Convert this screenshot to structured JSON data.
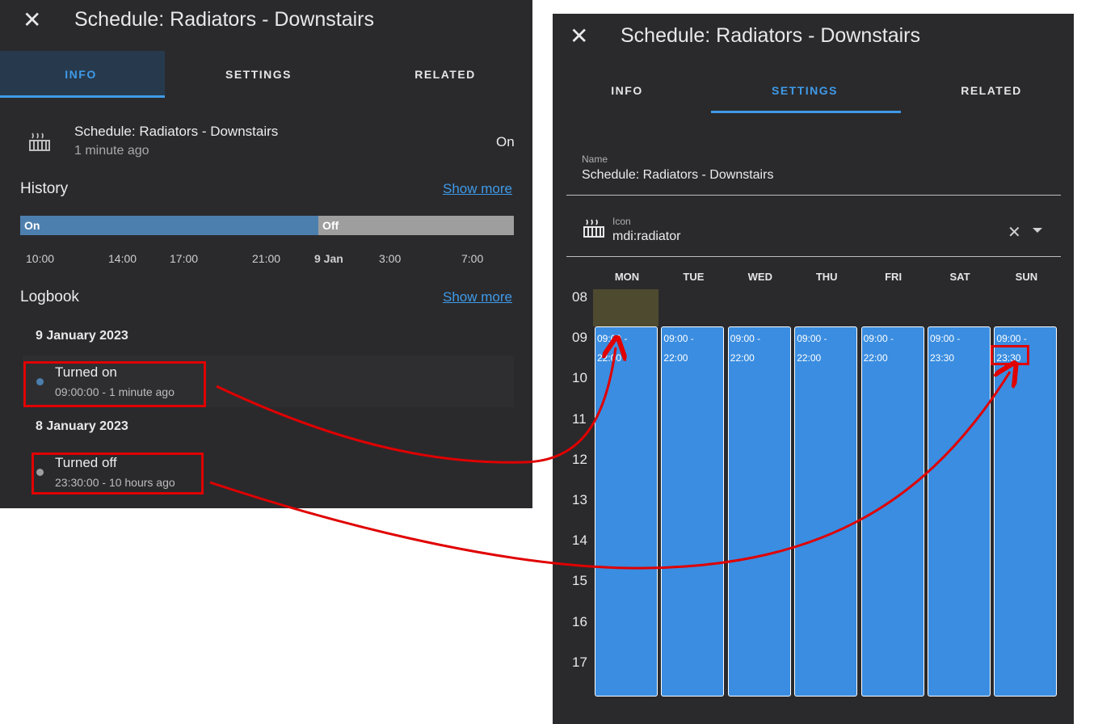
{
  "left": {
    "title": "Schedule: Radiators - Downstairs",
    "tabs": [
      "INFO",
      "SETTINGS",
      "RELATED"
    ],
    "entity": {
      "name": "Schedule: Radiators - Downstairs",
      "last_changed": "1 minute ago",
      "state": "On",
      "icon": "radiator-icon"
    },
    "history": {
      "title": "History",
      "show_more": "Show more",
      "on_label": "On",
      "off_label": "Off",
      "on_fraction": 0.604,
      "ticks": [
        "10:00",
        "14:00",
        "17:00",
        "21:00",
        "9 Jan",
        "3:00",
        "7:00"
      ]
    },
    "logbook": {
      "title": "Logbook",
      "show_more": "Show more",
      "groups": [
        {
          "date": "9 January 2023",
          "event": "Turned on",
          "time": "09:00:00 - 1 minute ago"
        },
        {
          "date": "8 January 2023",
          "event": "Turned off",
          "time": "23:30:00 - 10 hours ago"
        }
      ]
    }
  },
  "right": {
    "title": "Schedule: Radiators - Downstairs",
    "tabs": [
      "INFO",
      "SETTINGS",
      "RELATED"
    ],
    "name_field": {
      "label": "Name",
      "value": "Schedule: Radiators - Downstairs"
    },
    "icon_field": {
      "label": "Icon",
      "value": "mdi:radiator"
    },
    "days": [
      "MON",
      "TUE",
      "WED",
      "THU",
      "FRI",
      "SAT",
      "SUN"
    ],
    "hours": [
      "08",
      "09",
      "10",
      "11",
      "12",
      "13",
      "14",
      "15",
      "16",
      "17"
    ],
    "slots": [
      {
        "start": "09:00 -",
        "end": "22:00"
      },
      {
        "start": "09:00 -",
        "end": "22:00"
      },
      {
        "start": "09:00 -",
        "end": "22:00"
      },
      {
        "start": "09:00 -",
        "end": "22:00"
      },
      {
        "start": "09:00 -",
        "end": "22:00"
      },
      {
        "start": "09:00 -",
        "end": "23:30"
      },
      {
        "start": "09:00 -",
        "end": "23:30"
      }
    ]
  },
  "colors": {
    "panel": "#2a2a2d",
    "accent": "#3f9ae8",
    "on_bar": "#4d7fae",
    "off_bar": "#9e9e9e",
    "slot": "#3a8de0",
    "annotation": "#e00000"
  }
}
